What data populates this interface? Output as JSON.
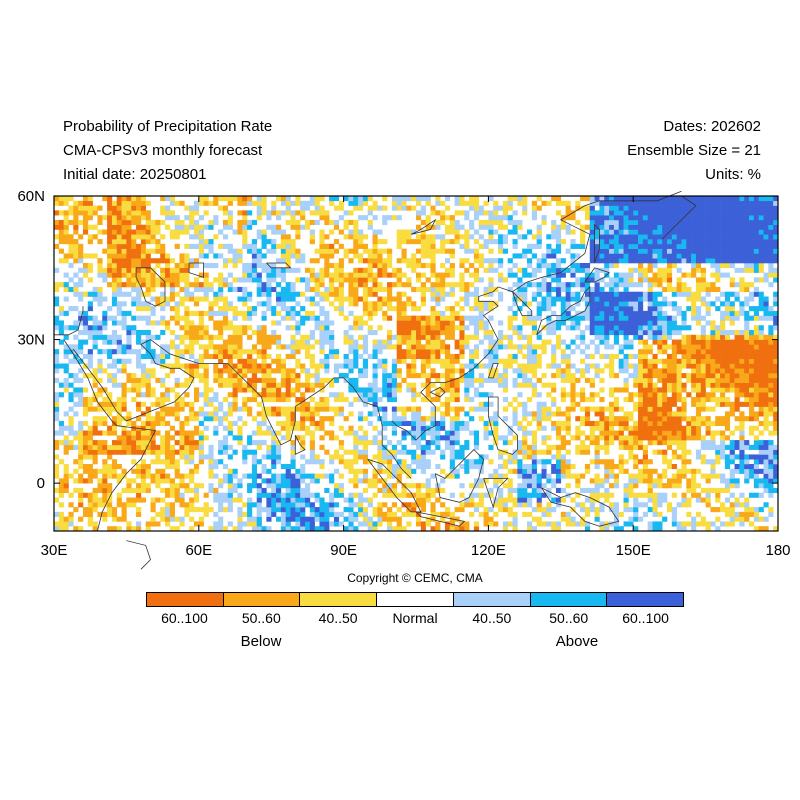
{
  "header": {
    "title": "Probability of Precipitation Rate",
    "model": "CMA-CPSv3 monthly forecast",
    "initial_date": "Initial date: 20250801",
    "dates": "Dates: 202602",
    "ensemble": "Ensemble Size = 21",
    "units": "Units: %"
  },
  "map": {
    "lon_range": [
      30,
      180
    ],
    "lat_range": [
      -10,
      60
    ],
    "x_ticks": [
      {
        "value": 30,
        "label": "30E"
      },
      {
        "value": 60,
        "label": "60E"
      },
      {
        "value": 90,
        "label": "90E"
      },
      {
        "value": 120,
        "label": "120E"
      },
      {
        "value": 150,
        "label": "150E"
      },
      {
        "value": 180,
        "label": "180"
      }
    ],
    "y_ticks": [
      {
        "value": 60,
        "label": "60N"
      },
      {
        "value": 30,
        "label": "30N"
      },
      {
        "value": 0,
        "label": "0"
      }
    ]
  },
  "copyright": "Copyright © CEMC, CMA",
  "legend": {
    "categories": [
      {
        "label": "60..100",
        "color": "#f07010"
      },
      {
        "label": "50..60",
        "color": "#f8a818"
      },
      {
        "label": "40..50",
        "color": "#f8dc40"
      },
      {
        "label": "Normal",
        "color": "#ffffff"
      },
      {
        "label": "40..50",
        "color": "#a8d0f8"
      },
      {
        "label": "50..60",
        "color": "#18b8f0"
      },
      {
        "label": "60..100",
        "color": "#3c60d8"
      }
    ],
    "below_label": "Below",
    "above_label": "Above"
  }
}
